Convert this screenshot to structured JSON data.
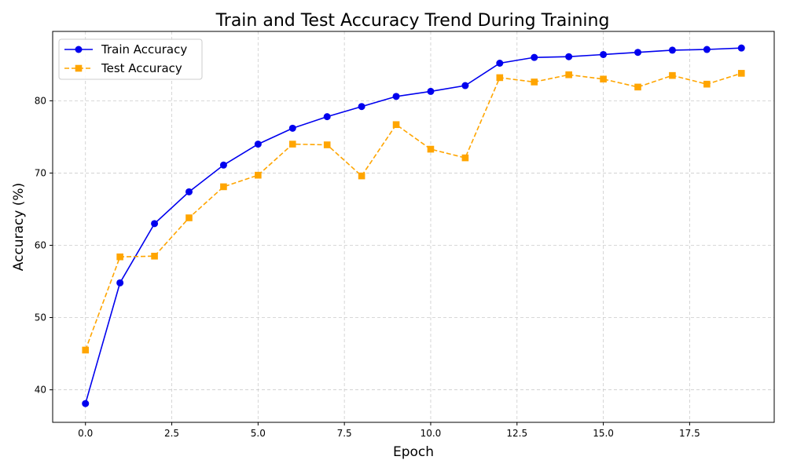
{
  "chart_data": {
    "type": "line",
    "title": "Train and Test Accuracy Trend During Training",
    "xlabel": "Epoch",
    "ylabel": "Accuracy (%)",
    "xlim": [
      -0.95,
      19.95
    ],
    "ylim": [
      35.5,
      89.6
    ],
    "xticks": [
      0.0,
      2.5,
      5.0,
      7.5,
      10.0,
      12.5,
      15.0,
      17.5
    ],
    "xtick_labels": [
      "0.0",
      "2.5",
      "5.0",
      "7.5",
      "10.0",
      "12.5",
      "15.0",
      "17.5"
    ],
    "yticks": [
      40,
      50,
      60,
      70,
      80
    ],
    "ytick_labels": [
      "40",
      "50",
      "60",
      "70",
      "80"
    ],
    "grid": true,
    "legend_position": "top-left",
    "x": [
      0,
      1,
      2,
      3,
      4,
      5,
      6,
      7,
      8,
      9,
      10,
      11,
      12,
      13,
      14,
      15,
      16,
      17,
      18,
      19
    ],
    "series": [
      {
        "name": "Train Accuracy",
        "color": "#0000ee",
        "line_style": "solid",
        "marker": "circle",
        "values": [
          38.1,
          54.8,
          63.0,
          67.4,
          71.1,
          74.0,
          76.2,
          77.8,
          79.2,
          80.6,
          81.3,
          82.1,
          85.2,
          86.0,
          86.1,
          86.4,
          86.7,
          87.0,
          87.1,
          87.3
        ]
      },
      {
        "name": "Test Accuracy",
        "color": "#ffa500",
        "line_style": "dashed",
        "marker": "square",
        "values": [
          45.5,
          58.4,
          58.5,
          63.8,
          68.1,
          69.7,
          74.0,
          73.9,
          69.6,
          76.7,
          73.3,
          72.1,
          83.2,
          82.6,
          83.6,
          83.0,
          81.9,
          83.5,
          82.3,
          83.8
        ]
      }
    ]
  }
}
